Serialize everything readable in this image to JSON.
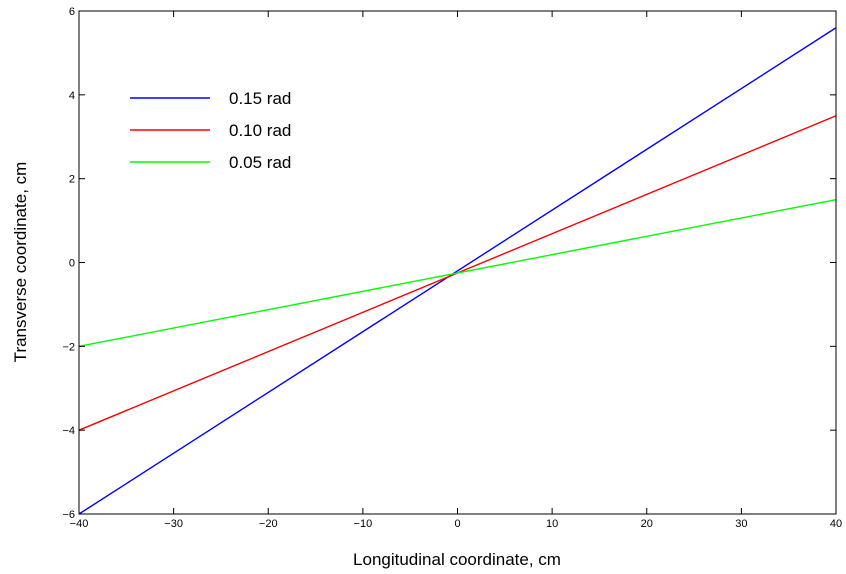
{
  "chart_data": {
    "type": "line",
    "title": "",
    "xlabel": "Longitudinal coordinate,  cm",
    "ylabel": "Transverse coordinate,  cm",
    "xlim": [
      -40,
      40
    ],
    "ylim": [
      -6,
      6
    ],
    "x_ticks": [
      -40,
      -30,
      -20,
      -10,
      0,
      10,
      20,
      30,
      40
    ],
    "y_ticks": [
      -6,
      -4,
      -2,
      0,
      2,
      4,
      6
    ],
    "grid": false,
    "legend_position": "top-left",
    "series": [
      {
        "name": "0.15 rad",
        "color": "#0000ff",
        "x": [
          -40,
          40
        ],
        "y": [
          -6.0,
          5.6
        ]
      },
      {
        "name": "0.10 rad",
        "color": "#ff0000",
        "x": [
          -40,
          40
        ],
        "y": [
          -4.0,
          3.5
        ]
      },
      {
        "name": "0.05 rad",
        "color": "#00ff00",
        "x": [
          -40,
          40
        ],
        "y": [
          -2.0,
          1.5
        ]
      }
    ]
  }
}
